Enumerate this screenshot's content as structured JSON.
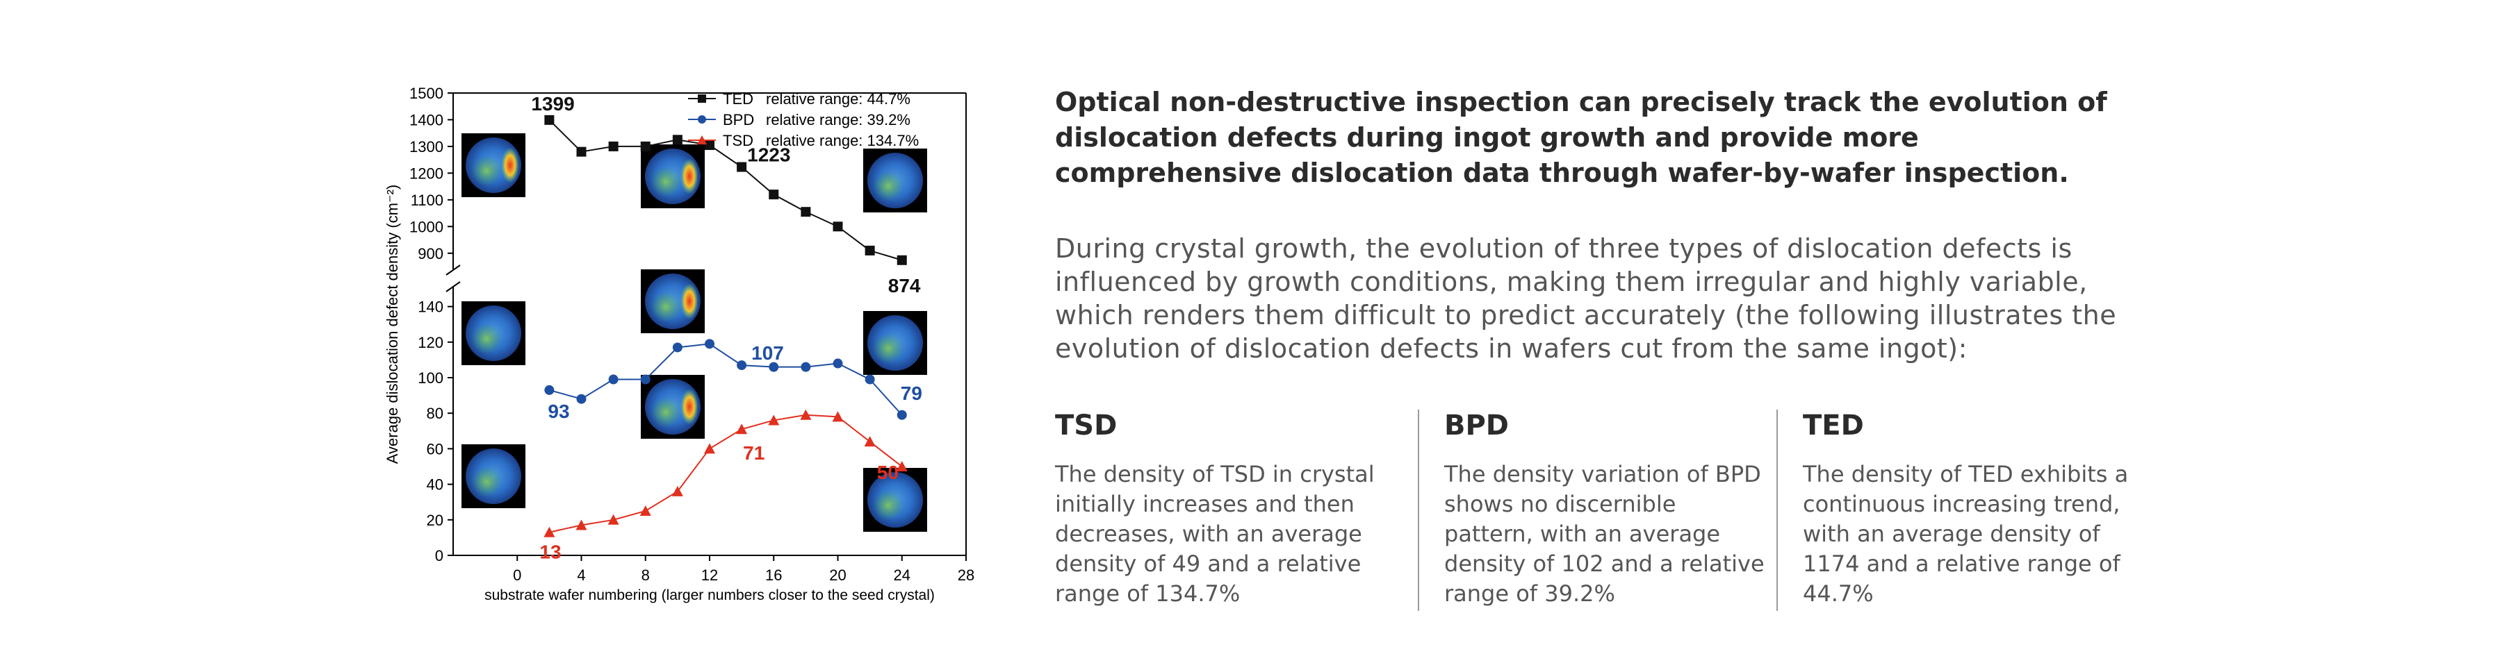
{
  "headline": "Optical non-destructive inspection can precisely track the evolution of dislocation defects during ingot growth and provide more comprehensive dislocation data through wafer-by-wafer inspection.",
  "intro": "During crystal growth, the evolution of three types of dislocation defects is influenced by growth conditions, making them irregular and highly variable, which renders them difficult to predict accurately (the following illustrates the evolution of dislocation defects in wafers cut from the same ingot):",
  "columns": [
    {
      "title": "TSD",
      "body": "The density of TSD in crystal initially increases and then decreases, with an average density of 49 and a relative range of 134.7%"
    },
    {
      "title": "BPD",
      "body": "The density variation of BPD shows no discernible pattern, with an average density of 102 and a relative range of 39.2%"
    },
    {
      "title": "TED",
      "body": "The density of TED exhibits a continuous increasing trend, with an average density of 1174 and a relative range of 44.7%"
    }
  ],
  "colors": {
    "ted": "#111111",
    "bpd": "#1f4fa0",
    "tsd": "#e0301e"
  },
  "chart_data": {
    "type": "line",
    "xlabel": "substrate wafer numbering (larger numbers closer to the seed crystal)",
    "ylabel": "Average dislocation defect density (cm⁻²)",
    "xlim": [
      -4,
      28
    ],
    "xticks": [
      0,
      4,
      8,
      12,
      16,
      20,
      24,
      28
    ],
    "ylim_upper": [
      850,
      1500
    ],
    "yticks_upper": [
      900,
      1000,
      1100,
      1200,
      1300,
      1400,
      1500
    ],
    "ylim_lower": [
      0,
      150
    ],
    "yticks_lower": [
      0,
      20,
      40,
      60,
      80,
      100,
      120,
      140
    ],
    "series": [
      {
        "name": "TED",
        "legend": "relative range:  44.7%",
        "marker": "square",
        "x": [
          2,
          4,
          6,
          8,
          10,
          12,
          14,
          16,
          18,
          20,
          22,
          24
        ],
        "y": [
          1399,
          1280,
          1300,
          1300,
          1325,
          1305,
          1223,
          1120,
          1055,
          1000,
          910,
          874
        ]
      },
      {
        "name": "BPD",
        "legend": "relative range:  39.2%",
        "marker": "circle",
        "x": [
          2,
          4,
          6,
          8,
          10,
          12,
          14,
          16,
          18,
          20,
          22,
          24
        ],
        "y": [
          93,
          88,
          99,
          99,
          117,
          119,
          107,
          106,
          106,
          108,
          99,
          79
        ]
      },
      {
        "name": "TSD",
        "legend": "relative range:  134.7%",
        "marker": "triangle",
        "x": [
          2,
          4,
          6,
          8,
          10,
          12,
          14,
          16,
          18,
          20,
          22,
          24
        ],
        "y": [
          13,
          17,
          20,
          25,
          36,
          60,
          71,
          76,
          79,
          78,
          64,
          50
        ]
      }
    ],
    "annotations": [
      {
        "series": "TED",
        "text": "1399",
        "x": 2,
        "y": 1399
      },
      {
        "series": "TED",
        "text": "1223",
        "x": 14,
        "y": 1223
      },
      {
        "series": "TED",
        "text": "874",
        "x": 24,
        "y": 874
      },
      {
        "series": "BPD",
        "text": "93",
        "x": 2,
        "y": 93
      },
      {
        "series": "BPD",
        "text": "107",
        "x": 14,
        "y": 107
      },
      {
        "series": "BPD",
        "text": "79",
        "x": 24,
        "y": 79
      },
      {
        "series": "TSD",
        "text": "13",
        "x": 2,
        "y": 13
      },
      {
        "series": "TSD",
        "text": "71",
        "x": 14,
        "y": 71
      },
      {
        "series": "TSD",
        "text": "50",
        "x": 24,
        "y": 50
      }
    ]
  }
}
